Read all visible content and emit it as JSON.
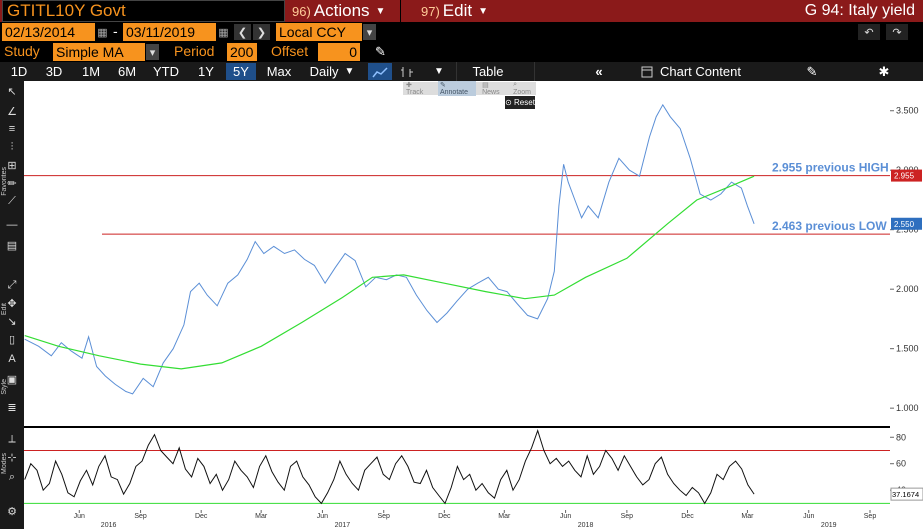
{
  "header": {
    "ticker": "GTITL10Y Govt",
    "actions_num": "96)",
    "actions_label": "Actions",
    "edit_num": "97)",
    "edit_label": "Edit",
    "page_title": "G 94: Italy yield"
  },
  "dates": {
    "start": "02/13/2014",
    "dash": "-",
    "end": "03/11/2019",
    "currency": "Local CCY"
  },
  "study": {
    "label": "Study",
    "value": "Simple MA",
    "period_label": "Period",
    "period_value": "200",
    "offset_label": "Offset",
    "offset_value": "0"
  },
  "toolbar": {
    "ranges": [
      "1D",
      "3D",
      "1M",
      "6M",
      "YTD",
      "1Y",
      "5Y",
      "Max"
    ],
    "active_range": "5Y",
    "frequency": "Daily",
    "table_label": "Table",
    "chart_content_label": "Chart Content"
  },
  "mini_tools": {
    "track": "Track",
    "annotate": "Annotate",
    "news": "News",
    "zoom": "Zoom",
    "reset": "Reset"
  },
  "side_labels": {
    "favorites": "Favorites",
    "edit": "Edit",
    "style": "Style",
    "modes": "Modes"
  },
  "colors": {
    "price_line": "#5b8fd6",
    "ma_line": "#33dd33",
    "ref_line": "#cc2222",
    "accent": "#f7931e",
    "header_bg": "#8b1a1a"
  },
  "chart_data": [
    {
      "type": "line",
      "title": "",
      "ylim": [
        0.85,
        3.75
      ],
      "y_ticks": [
        "3.500",
        "3.000",
        "2.500",
        "2.000",
        "1.500",
        "1.000"
      ],
      "y_tick_values": [
        3.5,
        3.0,
        2.5,
        2.0,
        1.5,
        1.0
      ],
      "x_tick_labels": [
        "Jun",
        "Sep",
        "Dec",
        "Mar",
        "Jun",
        "Sep",
        "Dec",
        "Mar",
        "Jun",
        "Sep",
        "Dec",
        "Mar",
        "Jun",
        "Sep"
      ],
      "x_tick_dates": [
        "2016-06-01",
        "2016-09-01",
        "2016-12-01",
        "2017-03-01",
        "2017-06-01",
        "2017-09-01",
        "2017-12-01",
        "2018-03-01",
        "2018-06-01",
        "2018-09-01",
        "2018-12-01",
        "2019-03-01",
        "2019-06-01",
        "2019-09-01"
      ],
      "year_labels": [
        "2016",
        "2017",
        "2018",
        "2019"
      ],
      "year_dates": [
        "2016-07-15",
        "2017-07-01",
        "2018-07-01",
        "2019-07-01"
      ],
      "x_range": [
        "2016-03-10",
        "2019-10-01"
      ],
      "series": [
        {
          "name": "",
          "x": [
            "2016-03-11",
            "2016-04-01",
            "2016-04-20",
            "2016-05-05",
            "2016-05-20",
            "2016-06-05",
            "2016-06-15",
            "2016-06-27",
            "2016-07-10",
            "2016-07-25",
            "2016-08-10",
            "2016-08-20",
            "2016-09-05",
            "2016-09-20",
            "2016-10-05",
            "2016-10-20",
            "2016-11-05",
            "2016-11-15",
            "2016-11-28",
            "2016-12-10",
            "2016-12-25",
            "2017-01-10",
            "2017-01-25",
            "2017-02-08",
            "2017-02-20",
            "2017-03-05",
            "2017-03-20",
            "2017-04-05",
            "2017-04-20",
            "2017-05-05",
            "2017-05-20",
            "2017-06-05",
            "2017-06-20",
            "2017-07-05",
            "2017-07-20",
            "2017-08-05",
            "2017-08-20",
            "2017-09-05",
            "2017-09-20",
            "2017-10-05",
            "2017-10-20",
            "2017-11-05",
            "2017-11-20",
            "2017-12-05",
            "2017-12-20",
            "2018-01-05",
            "2018-01-20",
            "2018-02-05",
            "2018-02-20",
            "2018-03-05",
            "2018-03-20",
            "2018-04-05",
            "2018-04-20",
            "2018-05-05",
            "2018-05-15",
            "2018-05-22",
            "2018-05-29",
            "2018-06-05",
            "2018-06-15",
            "2018-06-25",
            "2018-07-05",
            "2018-07-20",
            "2018-08-05",
            "2018-08-20",
            "2018-09-05",
            "2018-09-20",
            "2018-10-05",
            "2018-10-15",
            "2018-10-25",
            "2018-11-05",
            "2018-11-20",
            "2018-12-05",
            "2018-12-20",
            "2019-01-05",
            "2019-01-20",
            "2019-02-05",
            "2019-02-20",
            "2019-03-01",
            "2019-03-11"
          ],
          "values": [
            1.58,
            1.52,
            1.44,
            1.55,
            1.48,
            1.42,
            1.6,
            1.35,
            1.27,
            1.2,
            1.14,
            1.12,
            1.25,
            1.18,
            1.38,
            1.5,
            1.7,
            1.98,
            2.05,
            1.95,
            1.86,
            2.05,
            2.12,
            2.25,
            2.4,
            2.3,
            2.36,
            2.3,
            2.33,
            2.25,
            2.2,
            2.05,
            2.18,
            2.3,
            2.24,
            2.02,
            2.1,
            2.08,
            2.12,
            2.1,
            1.95,
            1.82,
            1.72,
            1.8,
            1.9,
            2.0,
            2.05,
            2.1,
            2.0,
            1.98,
            1.88,
            1.78,
            1.75,
            1.92,
            2.15,
            2.7,
            3.05,
            2.9,
            2.75,
            2.6,
            2.7,
            2.6,
            2.9,
            3.1,
            3.0,
            2.95,
            3.28,
            3.45,
            3.55,
            3.45,
            3.35,
            3.1,
            2.8,
            2.75,
            2.8,
            2.9,
            2.85,
            2.7,
            2.55
          ]
        },
        {
          "name": "",
          "x": [
            "2016-03-11",
            "2016-05-01",
            "2016-07-01",
            "2016-09-01",
            "2016-11-01",
            "2017-01-01",
            "2017-03-01",
            "2017-05-01",
            "2017-07-01",
            "2017-08-15",
            "2017-10-01",
            "2017-12-01",
            "2018-02-01",
            "2018-04-01",
            "2018-05-15",
            "2018-07-01",
            "2018-09-01",
            "2018-11-01",
            "2018-12-15",
            "2019-02-01",
            "2019-03-11"
          ],
          "values": [
            1.61,
            1.52,
            1.44,
            1.37,
            1.33,
            1.38,
            1.52,
            1.72,
            1.93,
            2.1,
            2.12,
            2.05,
            1.98,
            1.92,
            1.95,
            2.1,
            2.26,
            2.55,
            2.75,
            2.86,
            2.95
          ]
        }
      ],
      "reference_lines": [
        {
          "value": 2.955,
          "label": "2.955 previous HIGH",
          "axis_label": "2.955"
        },
        {
          "value": 2.463,
          "label": "2.463 previous LOW"
        }
      ],
      "last_value_label": "2.550"
    },
    {
      "type": "line",
      "title": "",
      "ylim": [
        25,
        87
      ],
      "y_ticks": [
        "80",
        "60",
        "40"
      ],
      "y_tick_values": [
        80,
        60,
        40
      ],
      "reference_lines": [
        {
          "value": 70
        },
        {
          "value": 30
        }
      ],
      "last_value_label": "37.1674",
      "series": [
        {
          "name": "",
          "values": [
            48,
            60,
            55,
            40,
            45,
            62,
            52,
            38,
            35,
            47,
            55,
            44,
            58,
            66,
            50,
            48,
            37,
            45,
            58,
            62,
            74,
            82,
            70,
            65,
            60,
            72,
            56,
            50,
            64,
            58,
            45,
            52,
            40,
            48,
            62,
            55,
            50,
            42,
            58,
            66,
            54,
            46,
            40,
            58,
            62,
            50,
            44,
            35,
            30,
            38,
            48,
            62,
            52,
            45,
            40,
            55,
            60,
            65,
            52,
            48,
            60,
            66,
            58,
            46,
            45,
            55,
            42,
            36,
            30,
            42,
            58,
            48,
            52,
            40,
            45,
            38,
            34,
            48,
            55,
            40,
            48,
            62,
            72,
            85,
            70,
            60,
            64,
            58,
            62,
            55,
            50,
            66,
            52,
            58,
            70,
            64,
            55,
            66,
            58,
            50,
            44,
            48,
            60,
            65,
            52,
            45,
            40,
            36,
            42,
            38,
            30,
            38,
            52,
            48,
            58,
            62,
            56,
            44,
            37
          ]
        }
      ]
    }
  ]
}
